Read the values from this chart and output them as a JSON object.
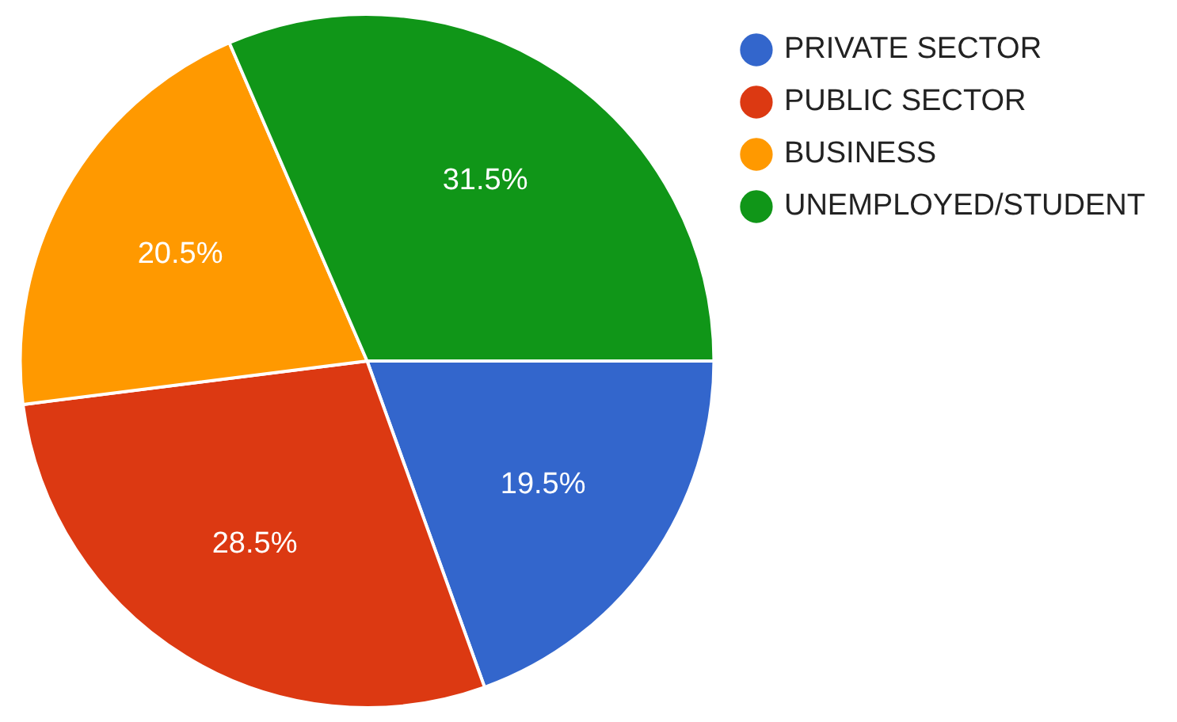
{
  "chart_data": {
    "type": "pie",
    "categories": [
      "PRIVATE SECTOR",
      "PUBLIC SECTOR",
      "BUSINESS",
      "UNEMPLOYED/STUDENT"
    ],
    "values": [
      19.5,
      28.5,
      20.5,
      31.5
    ],
    "colors": [
      "#3366cc",
      "#dc3912",
      "#ff9900",
      "#109618"
    ],
    "value_labels": [
      "19.5%",
      "28.5%",
      "20.5%",
      "31.5%"
    ],
    "legend": "top right"
  }
}
